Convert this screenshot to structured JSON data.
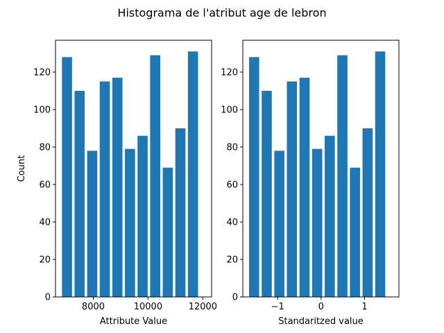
{
  "title": "Histograma de l'atribut age de lebron",
  "chart_data": [
    {
      "type": "bar",
      "title": "",
      "xlabel": "Attribute Value",
      "ylabel": "Count",
      "xlim": [
        6620,
        12320
      ],
      "ylim": [
        0,
        137
      ],
      "xticks": [
        8000,
        10000,
        12000
      ],
      "yticks": [
        0,
        20,
        40,
        60,
        80,
        100,
        120
      ],
      "bar_color": "#1f77b4",
      "bars": [
        {
          "x": 7040,
          "value": 128
        },
        {
          "x": 7500,
          "value": 110
        },
        {
          "x": 7960,
          "value": 78
        },
        {
          "x": 8420,
          "value": 115
        },
        {
          "x": 8880,
          "value": 117
        },
        {
          "x": 9340,
          "value": 79
        },
        {
          "x": 9800,
          "value": 86
        },
        {
          "x": 10260,
          "value": 129
        },
        {
          "x": 10720,
          "value": 69
        },
        {
          "x": 11180,
          "value": 90
        },
        {
          "x": 11640,
          "value": 131
        }
      ],
      "bar_width": 370
    },
    {
      "type": "bar",
      "title": "",
      "xlabel": "Standaritzed value",
      "ylabel": "",
      "xlim": [
        -1.8,
        1.79
      ],
      "ylim": [
        0,
        137
      ],
      "xticks": [
        -1,
        0,
        1
      ],
      "yticks": [
        0,
        20,
        40,
        60,
        80,
        100,
        120
      ],
      "bar_color": "#1f77b4",
      "bars": [
        {
          "x": -1.54,
          "value": 128
        },
        {
          "x": -1.25,
          "value": 110
        },
        {
          "x": -0.96,
          "value": 78
        },
        {
          "x": -0.67,
          "value": 115
        },
        {
          "x": -0.38,
          "value": 117
        },
        {
          "x": -0.09,
          "value": 79
        },
        {
          "x": 0.2,
          "value": 86
        },
        {
          "x": 0.49,
          "value": 129
        },
        {
          "x": 0.78,
          "value": 69
        },
        {
          "x": 1.07,
          "value": 90
        },
        {
          "x": 1.36,
          "value": 131
        }
      ],
      "bar_width": 0.233
    }
  ]
}
